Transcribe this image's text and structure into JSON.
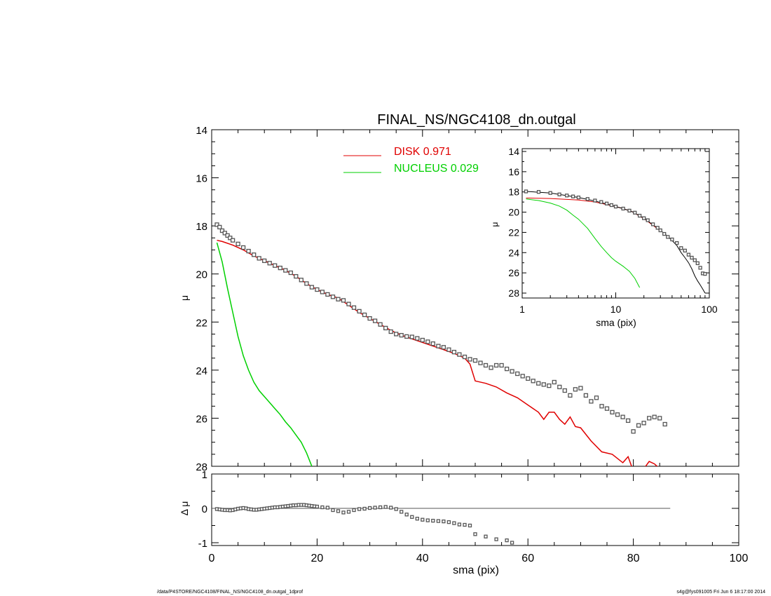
{
  "footer": {
    "left": "/data/P4STORE/NGC4108/FINAL_NS/NGC4108_dn.outgal_1dprof",
    "right": "s4g@fys091005  Fri Jun  6 18:17:00 2014"
  },
  "colors": {
    "disk": "#e00000",
    "nucleus": "#00d000",
    "data": "#555555",
    "axis": "#000000"
  },
  "chart_data": [
    {
      "panel": "main",
      "type": "scatter",
      "title": "FINAL_NS/NGC4108_dn.outgal",
      "xlabel": "",
      "ylabel": "μ",
      "xlim": [
        0,
        100
      ],
      "ylim": [
        28,
        14
      ],
      "y_inverted": true,
      "yticks": [
        14,
        16,
        18,
        20,
        22,
        24,
        26,
        28
      ],
      "legend": {
        "placement": "top",
        "entries": [
          {
            "label": "DISK  0.971",
            "color": "#e00000"
          },
          {
            "label": "NUCLEUS  0.029",
            "color": "#00d000"
          }
        ]
      },
      "series": [
        {
          "name": "DISK",
          "kind": "line",
          "x": [
            1,
            2,
            4,
            6,
            8,
            10,
            12,
            14,
            16,
            18,
            20,
            22,
            24,
            26,
            28,
            30,
            32,
            34,
            36,
            38,
            40,
            42,
            44,
            46,
            48,
            49,
            50,
            52,
            54,
            56,
            58,
            60,
            62,
            63,
            64,
            65,
            66,
            67,
            68,
            69,
            70,
            72,
            74,
            76,
            78,
            79,
            80,
            81,
            82,
            83,
            84,
            85
          ],
          "y": [
            18.6,
            18.65,
            18.8,
            19.0,
            19.25,
            19.45,
            19.65,
            19.85,
            20.1,
            20.4,
            20.65,
            20.85,
            21.0,
            21.3,
            21.6,
            21.85,
            22.1,
            22.35,
            22.55,
            22.7,
            22.85,
            23.0,
            23.15,
            23.3,
            23.5,
            23.75,
            24.45,
            24.55,
            24.7,
            24.95,
            25.15,
            25.45,
            25.75,
            26.05,
            25.75,
            25.75,
            26.05,
            26.25,
            25.95,
            26.35,
            26.4,
            26.95,
            27.4,
            27.5,
            27.85,
            27.6,
            28.2,
            28.6,
            28.1,
            27.8,
            27.9,
            28.1
          ]
        },
        {
          "name": "NUCLEUS",
          "kind": "line",
          "x": [
            1,
            2,
            3,
            4,
            5,
            6,
            7,
            8,
            9,
            10,
            11,
            12,
            13,
            14,
            15,
            16,
            17,
            18,
            19
          ],
          "y": [
            18.7,
            19.5,
            20.6,
            21.6,
            22.6,
            23.4,
            24.0,
            24.5,
            24.85,
            25.1,
            25.35,
            25.6,
            25.85,
            26.15,
            26.4,
            26.7,
            27.0,
            27.45,
            28.0
          ]
        },
        {
          "name": "DATA",
          "kind": "markers",
          "x": [
            1,
            1.5,
            2,
            2.5,
            3,
            3.5,
            4,
            5,
            6,
            7,
            8,
            9,
            10,
            11,
            12,
            13,
            14,
            15,
            16,
            17,
            18,
            19,
            20,
            21,
            22,
            23,
            24,
            25,
            26,
            27,
            28,
            29,
            30,
            31,
            32,
            33,
            34,
            35,
            36,
            37,
            38,
            39,
            40,
            41,
            42,
            43,
            44,
            45,
            46,
            47,
            48,
            49,
            50,
            51,
            52,
            53,
            54,
            55,
            56,
            57,
            58,
            59,
            60,
            61,
            62,
            63,
            64,
            65,
            66,
            67,
            68,
            69,
            70,
            71,
            72,
            73,
            74,
            75,
            76,
            77,
            78,
            79,
            80,
            81,
            82,
            83,
            84,
            85,
            86
          ],
          "y": [
            17.95,
            18.05,
            18.2,
            18.3,
            18.4,
            18.5,
            18.6,
            18.75,
            18.9,
            19.05,
            19.2,
            19.35,
            19.45,
            19.55,
            19.65,
            19.75,
            19.85,
            19.95,
            20.1,
            20.25,
            20.4,
            20.55,
            20.65,
            20.75,
            20.85,
            20.95,
            21.05,
            21.1,
            21.25,
            21.4,
            21.55,
            21.7,
            21.85,
            21.95,
            22.1,
            22.25,
            22.4,
            22.5,
            22.55,
            22.6,
            22.62,
            22.68,
            22.75,
            22.82,
            22.9,
            23.0,
            23.05,
            23.15,
            23.25,
            23.35,
            23.45,
            23.55,
            23.6,
            23.7,
            23.8,
            23.9,
            23.8,
            23.8,
            23.95,
            24.05,
            24.15,
            24.25,
            24.35,
            24.45,
            24.55,
            24.6,
            24.65,
            24.5,
            24.7,
            24.85,
            25.05,
            24.8,
            24.75,
            25.05,
            25.3,
            25.15,
            25.5,
            25.6,
            25.75,
            25.85,
            25.95,
            26.1,
            26.55,
            26.3,
            26.2,
            26.0,
            25.95,
            26.0,
            26.25
          ]
        }
      ]
    },
    {
      "panel": "inset",
      "type": "line",
      "title": "",
      "xlabel": "sma (pix)",
      "ylabel": "μ",
      "xscale": "log",
      "xlim": [
        1,
        100
      ],
      "ylim": [
        28,
        14
      ],
      "y_inverted": true,
      "xtick_labels": [
        "1",
        "10",
        "100"
      ],
      "yticks": [
        14,
        16,
        18,
        20,
        22,
        24,
        26,
        28
      ],
      "series": [
        {
          "name": "DISK",
          "kind": "line",
          "x": [
            1.1,
            2,
            4,
            6,
            8,
            10,
            12,
            15,
            20,
            25,
            30
          ],
          "y": [
            18.6,
            18.65,
            18.8,
            19.0,
            19.25,
            19.45,
            19.65,
            19.95,
            20.65,
            21.3,
            21.85
          ]
        },
        {
          "name": "NUCLEUS",
          "kind": "line",
          "x": [
            1.1,
            1.5,
            2,
            2.5,
            3,
            3.5,
            4,
            5,
            6,
            7,
            8,
            9,
            10,
            12,
            14,
            16,
            18
          ],
          "y": [
            18.7,
            18.85,
            19.1,
            19.4,
            19.8,
            20.3,
            20.7,
            21.6,
            22.6,
            23.4,
            24.0,
            24.5,
            24.85,
            25.35,
            25.85,
            26.55,
            27.45
          ]
        },
        {
          "name": "MODEL",
          "kind": "line",
          "x": [
            1.1,
            2,
            4,
            6,
            8,
            10,
            12,
            15,
            20,
            25,
            30,
            35,
            40,
            45,
            50,
            55,
            60,
            65,
            70,
            75,
            80,
            85,
            90
          ],
          "y": [
            17.95,
            18.1,
            18.55,
            18.9,
            19.2,
            19.45,
            19.65,
            19.95,
            20.6,
            21.25,
            21.8,
            22.3,
            22.8,
            23.3,
            24.0,
            24.5,
            25.0,
            25.6,
            26.3,
            26.8,
            27.2,
            27.6,
            28.0
          ]
        },
        {
          "name": "DATA",
          "kind": "markers",
          "x": [
            1.1,
            1.5,
            2,
            2.5,
            3,
            3.5,
            4,
            5,
            6,
            7,
            8,
            9,
            10,
            12,
            14,
            16,
            18,
            20,
            22,
            25,
            28,
            30,
            33,
            36,
            40,
            45,
            50,
            55,
            60,
            65,
            70,
            75,
            80,
            85,
            90
          ],
          "y": [
            17.95,
            18.0,
            18.1,
            18.25,
            18.35,
            18.45,
            18.55,
            18.7,
            18.85,
            19.0,
            19.15,
            19.3,
            19.45,
            19.65,
            19.85,
            20.05,
            20.35,
            20.6,
            20.8,
            21.2,
            21.55,
            21.8,
            22.15,
            22.45,
            22.7,
            23.05,
            23.55,
            23.8,
            24.2,
            24.5,
            24.75,
            25.05,
            25.5,
            26.05,
            26.1
          ]
        }
      ]
    },
    {
      "panel": "residual",
      "type": "scatter",
      "title": "",
      "xlabel": "sma (pix)",
      "ylabel": "Δ μ",
      "xlim": [
        0,
        100
      ],
      "ylim": [
        -1.1,
        1.0
      ],
      "yticks": [
        -1,
        0,
        1
      ],
      "xticks": [
        0,
        20,
        40,
        60,
        80,
        100
      ],
      "reference_line": {
        "y": 0,
        "x_to": 87
      },
      "series": [
        {
          "name": "RESIDUAL",
          "kind": "markers",
          "x": [
            1,
            1.5,
            2,
            2.5,
            3,
            3.5,
            4,
            4.5,
            5,
            5.5,
            6,
            6.5,
            7,
            7.5,
            8,
            8.5,
            9,
            9.5,
            10,
            10.5,
            11,
            11.5,
            12,
            12.5,
            13,
            13.5,
            14,
            14.5,
            15,
            15.5,
            16,
            16.5,
            17,
            17.5,
            18,
            18.5,
            19,
            19.5,
            20,
            21,
            22,
            23,
            24,
            25,
            26,
            27,
            28,
            29,
            30,
            31,
            32,
            33,
            34,
            35,
            36,
            37,
            38,
            39,
            40,
            41,
            42,
            43,
            44,
            45,
            46,
            47,
            48,
            49,
            50,
            52,
            54,
            56,
            57
          ],
          "y": [
            -0.02,
            -0.03,
            -0.04,
            -0.05,
            -0.05,
            -0.06,
            -0.05,
            -0.03,
            -0.01,
            0.0,
            0.01,
            0.0,
            -0.02,
            -0.03,
            -0.04,
            -0.04,
            -0.03,
            -0.02,
            -0.01,
            0.0,
            0.01,
            0.02,
            0.03,
            0.03,
            0.04,
            0.05,
            0.06,
            0.07,
            0.08,
            0.09,
            0.09,
            0.1,
            0.1,
            0.1,
            0.09,
            0.08,
            0.07,
            0.06,
            0.05,
            0.03,
            0.02,
            -0.05,
            -0.08,
            -0.12,
            -0.1,
            -0.05,
            -0.02,
            -0.01,
            0.01,
            0.02,
            0.03,
            0.04,
            0.02,
            -0.02,
            -0.1,
            -0.18,
            -0.25,
            -0.3,
            -0.33,
            -0.35,
            -0.36,
            -0.37,
            -0.38,
            -0.4,
            -0.43,
            -0.47,
            -0.48,
            -0.5,
            -0.75,
            -0.82,
            -0.9,
            -0.93,
            -1.0
          ]
        }
      ]
    }
  ]
}
